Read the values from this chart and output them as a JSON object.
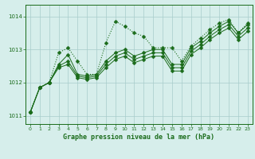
{
  "title": "Graphe pression niveau de la mer (hPa)",
  "bg_color": "#d6eeeb",
  "grid_color": "#a8ccca",
  "line_color": "#1a6b1a",
  "xlim": [
    -0.5,
    23.5
  ],
  "ylim": [
    1010.75,
    1014.35
  ],
  "yticks": [
    1011,
    1012,
    1013,
    1014
  ],
  "xticks": [
    0,
    1,
    2,
    3,
    4,
    5,
    6,
    7,
    8,
    9,
    10,
    11,
    12,
    13,
    14,
    15,
    16,
    17,
    18,
    19,
    20,
    21,
    22,
    23
  ],
  "series": [
    {
      "x": [
        0,
        1,
        2,
        3,
        4,
        5,
        6,
        7,
        8,
        9,
        10,
        11,
        12,
        13,
        14,
        15,
        16,
        17,
        18,
        19,
        20,
        21,
        22,
        23
      ],
      "y": [
        1011.1,
        1011.85,
        1012.0,
        1012.9,
        1013.05,
        1012.65,
        1012.25,
        1012.25,
        1013.2,
        1013.85,
        1013.7,
        1013.5,
        1013.4,
        1013.05,
        1013.05,
        1013.05,
        1012.65,
        1013.1,
        1013.35,
        1013.6,
        1013.8,
        1013.9,
        1013.5,
        1013.8
      ],
      "style": "dotted",
      "marker": "D",
      "markersize": 2.5
    },
    {
      "x": [
        0,
        1,
        2,
        3,
        4,
        5,
        6,
        7,
        8,
        9,
        10,
        11,
        12,
        13,
        14,
        15,
        16,
        17,
        18,
        19,
        20,
        21,
        22,
        23
      ],
      "y": [
        1011.1,
        1011.85,
        1012.0,
        1012.55,
        1012.85,
        1012.25,
        1012.2,
        1012.25,
        1012.65,
        1012.9,
        1013.0,
        1012.8,
        1012.9,
        1013.0,
        1013.0,
        1012.55,
        1012.55,
        1013.05,
        1013.25,
        1013.5,
        1013.7,
        1013.85,
        1013.5,
        1013.75
      ],
      "style": "solid",
      "marker": "D",
      "markersize": 2.5
    },
    {
      "x": [
        0,
        1,
        2,
        3,
        4,
        5,
        6,
        7,
        8,
        9,
        10,
        11,
        12,
        13,
        14,
        15,
        16,
        17,
        18,
        19,
        20,
        21,
        22,
        23
      ],
      "y": [
        1011.1,
        1011.85,
        1012.0,
        1012.5,
        1012.65,
        1012.2,
        1012.15,
        1012.2,
        1012.55,
        1012.8,
        1012.9,
        1012.7,
        1012.8,
        1012.9,
        1012.9,
        1012.45,
        1012.45,
        1012.95,
        1013.15,
        1013.4,
        1013.6,
        1013.75,
        1013.4,
        1013.65
      ],
      "style": "solid",
      "marker": "D",
      "markersize": 2.5
    },
    {
      "x": [
        0,
        1,
        2,
        3,
        4,
        5,
        6,
        7,
        8,
        9,
        10,
        11,
        12,
        13,
        14,
        15,
        16,
        17,
        18,
        19,
        20,
        21,
        22,
        23
      ],
      "y": [
        1011.1,
        1011.85,
        1012.0,
        1012.45,
        1012.55,
        1012.15,
        1012.1,
        1012.15,
        1012.45,
        1012.7,
        1012.8,
        1012.6,
        1012.7,
        1012.8,
        1012.8,
        1012.35,
        1012.35,
        1012.85,
        1013.05,
        1013.3,
        1013.5,
        1013.65,
        1013.3,
        1013.55
      ],
      "style": "solid",
      "marker": "D",
      "markersize": 2.5
    }
  ]
}
